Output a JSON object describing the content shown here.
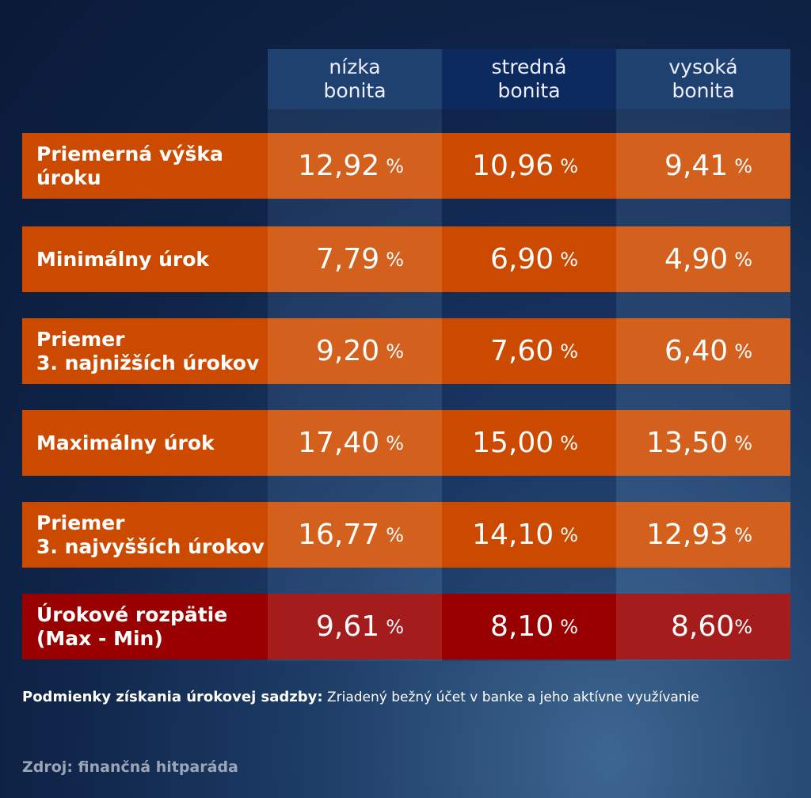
{
  "chart_data": {
    "type": "table",
    "columns": [
      "nízka\nbonita",
      "stredná\nbonita",
      "vysoká\nbonita"
    ],
    "rows": [
      {
        "label": "Priemerná výška\núroku",
        "values": [
          "12,92",
          "10,96",
          "9,41"
        ],
        "unit": " %"
      },
      {
        "label": "Minimálny úrok",
        "values": [
          "7,79",
          "6,90",
          "4,90"
        ],
        "unit": " %"
      },
      {
        "label": "Priemer\n3. najnižších úrokov",
        "values": [
          "9,20",
          "7,60",
          "6,40"
        ],
        "unit": " %"
      },
      {
        "label": "Maximálny úrok",
        "values": [
          "17,40",
          "15,00",
          "13,50"
        ],
        "unit": " %"
      },
      {
        "label": "Priemer\n3. najvyšších úrokov",
        "values": [
          "16,77",
          "14,10",
          "12,93"
        ],
        "unit": " %"
      },
      {
        "label": "Úrokové rozpätie\n(Max - Min)",
        "values": [
          "9,61",
          "8,10",
          "8,60"
        ],
        "units": [
          " %",
          " %",
          "%"
        ]
      }
    ]
  },
  "footer": {
    "note_label": "Podmienky získania úrokovej sadzby:",
    "note_text": " Zriadený bežný účet v banke a jeho aktívne využívanie",
    "source": "Zdroj: finančná hitparáda"
  },
  "colors": {
    "orange": "#cc4a00",
    "orange_light": "#d4601e",
    "red": "#990000",
    "header_blue": "#1f4170"
  }
}
